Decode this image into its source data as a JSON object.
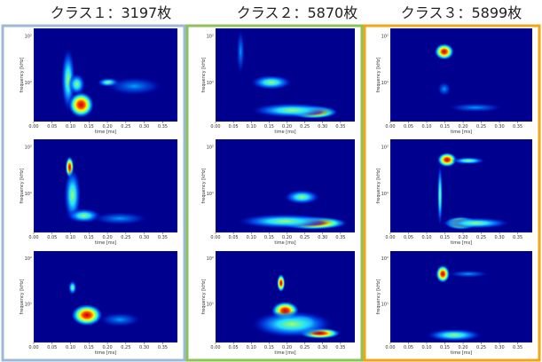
{
  "columns": [
    {
      "title": "クラス１：3197枚"
    },
    {
      "title": "クラス２：5870枚"
    },
    {
      "title": "クラス３：5899枚"
    }
  ],
  "axis": {
    "x_label": "time [ms]",
    "y_label": "frequency [kHz]",
    "xticks": [
      "0.00",
      "0.05",
      "0.10",
      "0.15",
      "0.20",
      "0.25",
      "0.30",
      "0.35"
    ],
    "yticks": [
      "10²",
      "10¹"
    ]
  }
}
